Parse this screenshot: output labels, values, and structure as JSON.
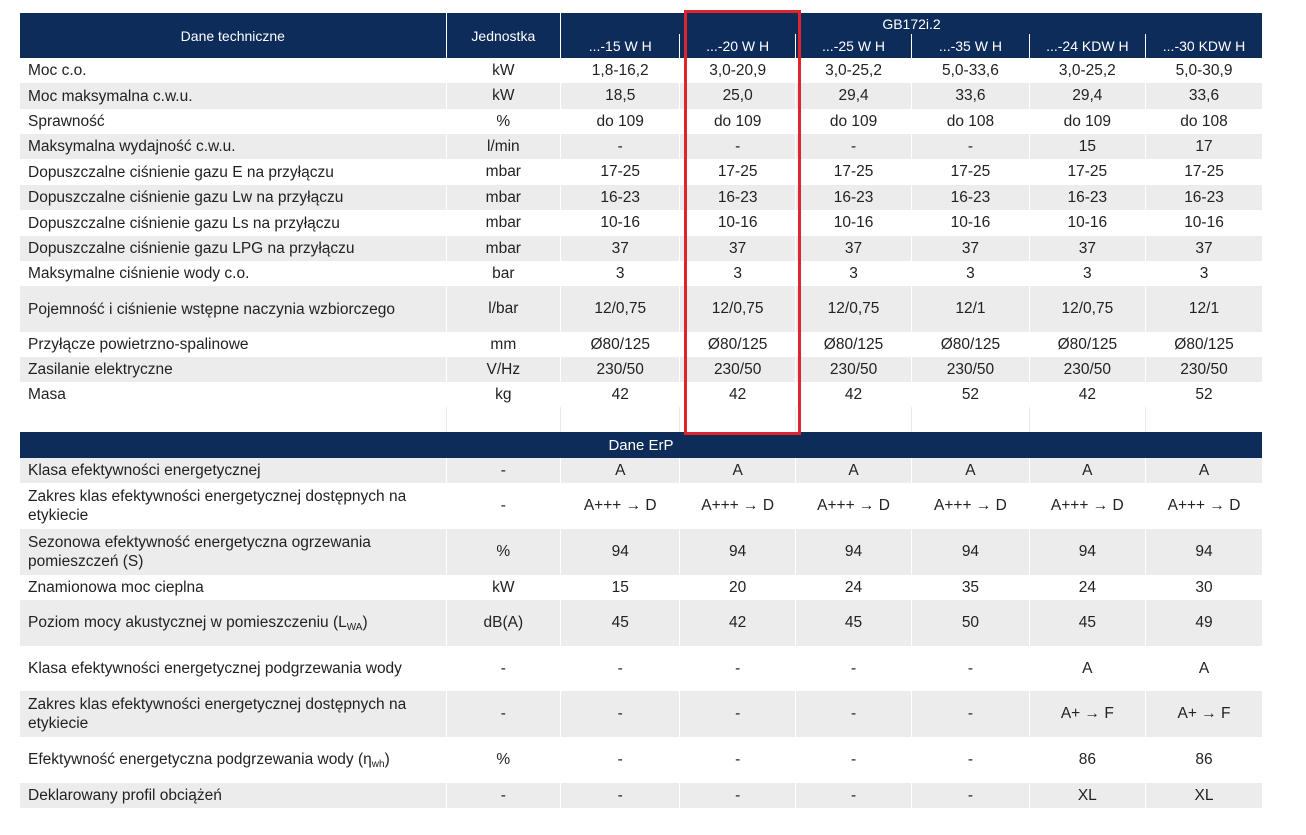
{
  "header": {
    "title_col": "Dane techniczne",
    "unit_col": "Jednostka",
    "group": "GB172i.2",
    "models": [
      "...-15 W H",
      "...-20 W H",
      "...-25 W H",
      "...-35 W H",
      "...-24 KDW H",
      "...-30 KDW H"
    ]
  },
  "technical_rows": [
    {
      "label": "Moc c.o.",
      "unit": "kW",
      "values": [
        "1,8-16,2",
        "3,0-20,9",
        "3,0-25,2",
        "5,0-33,6",
        "3,0-25,2",
        "5,0-30,9"
      ]
    },
    {
      "label": "Moc maksymalna c.w.u.",
      "unit": "kW",
      "values": [
        "18,5",
        "25,0",
        "29,4",
        "33,6",
        "29,4",
        "33,6"
      ]
    },
    {
      "label": "Sprawność",
      "unit": "%",
      "values": [
        "do 109",
        "do 109",
        "do 109",
        "do 108",
        "do 109",
        "do 108"
      ]
    },
    {
      "label": "Maksymalna wydajność c.w.u.",
      "unit": "l/min",
      "values": [
        "-",
        "-",
        "-",
        "-",
        "15",
        "17"
      ]
    },
    {
      "label": "Dopuszczalne ciśnienie gazu E na przyłączu",
      "unit": "mbar",
      "values": [
        "17-25",
        "17-25",
        "17-25",
        "17-25",
        "17-25",
        "17-25"
      ]
    },
    {
      "label": "Dopuszczalne ciśnienie gazu Lw na przyłączu",
      "unit": "mbar",
      "values": [
        "16-23",
        "16-23",
        "16-23",
        "16-23",
        "16-23",
        "16-23"
      ]
    },
    {
      "label": "Dopuszczalne ciśnienie gazu Ls na przyłączu",
      "unit": "mbar",
      "values": [
        "10-16",
        "10-16",
        "10-16",
        "10-16",
        "10-16",
        "10-16"
      ]
    },
    {
      "label": "Dopuszczalne ciśnienie gazu LPG na przyłączu",
      "unit": "mbar",
      "values": [
        "37",
        "37",
        "37",
        "37",
        "37",
        "37"
      ]
    },
    {
      "label": "Maksymalne ciśnienie wody c.o.",
      "unit": "bar",
      "values": [
        "3",
        "3",
        "3",
        "3",
        "3",
        "3"
      ]
    },
    {
      "label": "Pojemność i ciśnienie wstępne naczynia wzbiorczego",
      "unit": "l/bar",
      "values": [
        "12/0,75",
        "12/0,75",
        "12/0,75",
        "12/1",
        "12/0,75",
        "12/1"
      ]
    },
    {
      "label": "Przyłącze powietrzno-spalinowe",
      "unit": "mm",
      "values": [
        "Ø80/125",
        "Ø80/125",
        "Ø80/125",
        "Ø80/125",
        "Ø80/125",
        "Ø80/125"
      ]
    },
    {
      "label": "Zasilanie elektryczne",
      "unit": "V/Hz",
      "values": [
        "230/50",
        "230/50",
        "230/50",
        "230/50",
        "230/50",
        "230/50"
      ]
    },
    {
      "label": "Masa",
      "unit": "kg",
      "values": [
        "42",
        "42",
        "42",
        "52",
        "42",
        "52"
      ]
    }
  ],
  "erp": {
    "section_title": "Dane ErP",
    "rows": [
      {
        "label": "Klasa efektywności energetycznej",
        "unit": "-",
        "values": [
          "A",
          "A",
          "A",
          "A",
          "A",
          "A"
        ]
      },
      {
        "label": "Zakres klas efektywności energetycznej dostępnych na etykiecie",
        "unit": "-",
        "values": [
          "A+++ → D",
          "A+++ → D",
          "A+++ → D",
          "A+++ → D",
          "A+++ → D",
          "A+++ → D"
        ]
      },
      {
        "label": "Sezonowa efektywność energetyczna ogrzewania pomieszczeń (S)",
        "unit": "%",
        "values": [
          "94",
          "94",
          "94",
          "94",
          "94",
          "94"
        ]
      },
      {
        "label": "Znamionowa moc cieplna",
        "unit": "kW",
        "values": [
          "15",
          "20",
          "24",
          "35",
          "24",
          "30"
        ]
      },
      {
        "label": "Poziom mocy akustycznej w pomieszczeniu (L",
        "label_sub": "WA",
        "label_end": ")",
        "unit": "dB(A)",
        "values": [
          "45",
          "42",
          "45",
          "50",
          "45",
          "49"
        ]
      },
      {
        "label": "Klasa efektywności energetycznej podgrzewania wody",
        "unit": "-",
        "values": [
          "-",
          "-",
          "-",
          "-",
          "A",
          "A"
        ]
      },
      {
        "label": "Zakres klas efektywności energetycznej dostępnych na etykiecie",
        "unit": "-",
        "values": [
          "-",
          "-",
          "-",
          "-",
          "A+ → F",
          "A+ → F"
        ]
      },
      {
        "label": "Efektywność energetyczna podgrzewania wody (η",
        "label_sub": "wh",
        "label_end": ")",
        "unit": "%",
        "values": [
          "-",
          "-",
          "-",
          "-",
          "86",
          "86"
        ]
      },
      {
        "label": "Deklarowany profil obciążeń",
        "unit": "-",
        "values": [
          "-",
          "-",
          "-",
          "-",
          "XL",
          "XL"
        ]
      }
    ]
  },
  "highlight": {
    "model_index": 1,
    "color": "#e0242c"
  }
}
